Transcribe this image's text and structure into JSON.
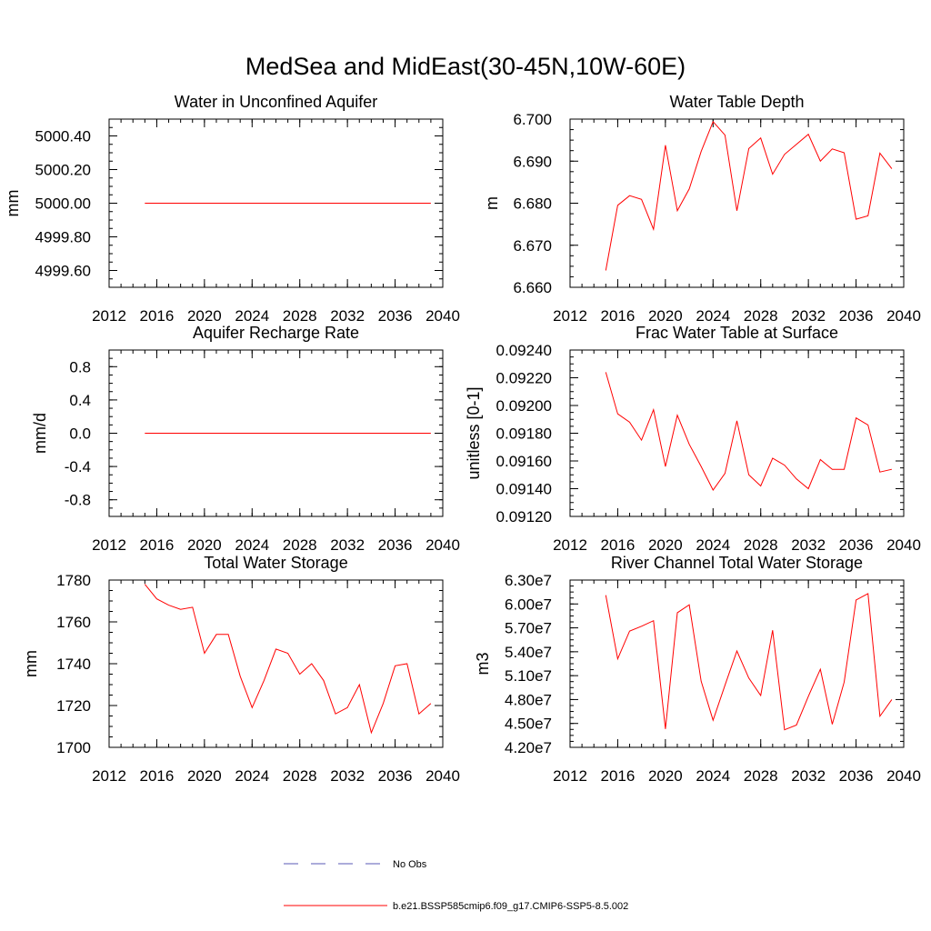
{
  "figure": {
    "title": "MedSea and MidEast(30-45N,10W-60E)"
  },
  "legend": {
    "entries": [
      {
        "label": "No Obs",
        "style": "dashed",
        "color": "#5a5ab4"
      },
      {
        "label": "b.e21.BSSP585cmip6.f09_g17.CMIP6-SSP5-8.5.002",
        "style": "solid",
        "color": "#ff0000"
      }
    ]
  },
  "colors": {
    "series": "#ff0000",
    "axes": "#000000"
  },
  "chart_data": [
    {
      "type": "line",
      "title": "Water in Unconfined Aquifer",
      "ylabel": "mm",
      "xlim": [
        2012,
        2040
      ],
      "xticks": [
        2012,
        2016,
        2020,
        2024,
        2028,
        2032,
        2036,
        2040
      ],
      "xtick_labels": [
        "2012",
        "2016",
        "2020",
        "2024",
        "2028",
        "2032",
        "2036",
        "2040"
      ],
      "ylim": [
        4999.5,
        5000.5
      ],
      "yticks": [
        4999.6,
        4999.8,
        5000.0,
        5000.2,
        5000.4
      ],
      "ytick_labels": [
        "4999.60",
        "4999.80",
        "5000.00",
        "5000.20",
        "5000.40"
      ],
      "x": [
        2015,
        2016,
        2017,
        2018,
        2019,
        2020,
        2021,
        2022,
        2023,
        2024,
        2025,
        2026,
        2027,
        2028,
        2029,
        2030,
        2031,
        2032,
        2033,
        2034,
        2035,
        2036,
        2037,
        2038,
        2039
      ],
      "series": [
        {
          "values": [
            5000,
            5000,
            5000,
            5000,
            5000,
            5000,
            5000,
            5000,
            5000,
            5000,
            5000,
            5000,
            5000,
            5000,
            5000,
            5000,
            5000,
            5000,
            5000,
            5000,
            5000,
            5000,
            5000,
            5000,
            5000
          ]
        }
      ]
    },
    {
      "type": "line",
      "title": "Water Table Depth",
      "ylabel": "m",
      "xlim": [
        2012,
        2040
      ],
      "xticks": [
        2012,
        2016,
        2020,
        2024,
        2028,
        2032,
        2036,
        2040
      ],
      "xtick_labels": [
        "2012",
        "2016",
        "2020",
        "2024",
        "2028",
        "2032",
        "2036",
        "2040"
      ],
      "ylim": [
        6.66,
        6.7
      ],
      "yticks": [
        6.66,
        6.67,
        6.68,
        6.69,
        6.7
      ],
      "ytick_labels": [
        "6.660",
        "6.670",
        "6.680",
        "6.690",
        "6.700"
      ],
      "x": [
        2015,
        2016,
        2017,
        2018,
        2019,
        2020,
        2021,
        2022,
        2023,
        2024,
        2025,
        2026,
        2027,
        2028,
        2029,
        2030,
        2031,
        2032,
        2033,
        2034,
        2035,
        2036,
        2037,
        2038,
        2039
      ],
      "series": [
        {
          "values": [
            6.664,
            6.6795,
            6.6818,
            6.6809,
            6.6738,
            6.6938,
            6.6782,
            6.6834,
            6.6923,
            6.6994,
            6.6962,
            6.6782,
            6.693,
            6.6955,
            6.6869,
            6.6916,
            6.694,
            6.6964,
            6.69,
            6.6929,
            6.692,
            6.6762,
            6.677,
            6.6919,
            6.6882
          ]
        }
      ]
    },
    {
      "type": "line",
      "title": "Aquifer Recharge Rate",
      "ylabel": "mm/d",
      "xlim": [
        2012,
        2040
      ],
      "xticks": [
        2012,
        2016,
        2020,
        2024,
        2028,
        2032,
        2036,
        2040
      ],
      "xtick_labels": [
        "2012",
        "2016",
        "2020",
        "2024",
        "2028",
        "2032",
        "2036",
        "2040"
      ],
      "ylim": [
        -1.0,
        1.0
      ],
      "yticks": [
        -0.8,
        -0.4,
        0.0,
        0.4,
        0.8
      ],
      "ytick_labels": [
        "-0.8",
        "-0.4",
        "0.0",
        "0.4",
        "0.8"
      ],
      "x": [
        2015,
        2016,
        2017,
        2018,
        2019,
        2020,
        2021,
        2022,
        2023,
        2024,
        2025,
        2026,
        2027,
        2028,
        2029,
        2030,
        2031,
        2032,
        2033,
        2034,
        2035,
        2036,
        2037,
        2038,
        2039
      ],
      "series": [
        {
          "values": [
            0,
            0,
            0,
            0,
            0,
            0,
            0,
            0,
            0,
            0,
            0,
            0,
            0,
            0,
            0,
            0,
            0,
            0,
            0,
            0,
            0,
            0,
            0,
            0,
            0
          ]
        }
      ]
    },
    {
      "type": "line",
      "title": "Frac Water Table at Surface",
      "ylabel": "unitless [0-1]",
      "xlim": [
        2012,
        2040
      ],
      "xticks": [
        2012,
        2016,
        2020,
        2024,
        2028,
        2032,
        2036,
        2040
      ],
      "xtick_labels": [
        "2012",
        "2016",
        "2020",
        "2024",
        "2028",
        "2032",
        "2036",
        "2040"
      ],
      "ylim": [
        0.0912,
        0.0924
      ],
      "yticks": [
        0.0912,
        0.0914,
        0.0916,
        0.0918,
        0.092,
        0.0922,
        0.0924
      ],
      "ytick_labels": [
        "0.09120",
        "0.09140",
        "0.09160",
        "0.09180",
        "0.09200",
        "0.09220",
        "0.09240"
      ],
      "x": [
        2015,
        2016,
        2017,
        2018,
        2019,
        2020,
        2021,
        2022,
        2023,
        2024,
        2025,
        2026,
        2027,
        2028,
        2029,
        2030,
        2031,
        2032,
        2033,
        2034,
        2035,
        2036,
        2037,
        2038,
        2039
      ],
      "series": [
        {
          "values": [
            0.09224,
            0.09194,
            0.09188,
            0.09175,
            0.09197,
            0.09156,
            0.09193,
            0.09172,
            0.09156,
            0.09139,
            0.09151,
            0.09189,
            0.0915,
            0.09142,
            0.09162,
            0.09157,
            0.09147,
            0.0914,
            0.09161,
            0.09154,
            0.09154,
            0.09191,
            0.09186,
            0.09152,
            0.09154
          ]
        }
      ]
    },
    {
      "type": "line",
      "title": "Total Water Storage",
      "ylabel": "mm",
      "xlim": [
        2012,
        2040
      ],
      "xticks": [
        2012,
        2016,
        2020,
        2024,
        2028,
        2032,
        2036,
        2040
      ],
      "xtick_labels": [
        "2012",
        "2016",
        "2020",
        "2024",
        "2028",
        "2032",
        "2036",
        "2040"
      ],
      "ylim": [
        1700,
        1780
      ],
      "yticks": [
        1700,
        1720,
        1740,
        1760,
        1780
      ],
      "ytick_labels": [
        "1700",
        "1720",
        "1740",
        "1760",
        "1780"
      ],
      "x": [
        2015,
        2016,
        2017,
        2018,
        2019,
        2020,
        2021,
        2022,
        2023,
        2024,
        2025,
        2026,
        2027,
        2028,
        2029,
        2030,
        2031,
        2032,
        2033,
        2034,
        2035,
        2036,
        2037,
        2038,
        2039
      ],
      "series": [
        {
          "values": [
            1778,
            1771,
            1768,
            1766,
            1767,
            1745,
            1754,
            1754,
            1734,
            1719,
            1732,
            1747,
            1745,
            1735,
            1740,
            1732,
            1716,
            1719,
            1730,
            1707,
            1721,
            1739,
            1740,
            1716,
            1721
          ]
        }
      ]
    },
    {
      "type": "line",
      "title": "River Channel Total Water Storage",
      "ylabel": "m3",
      "xlim": [
        2012,
        2040
      ],
      "xticks": [
        2012,
        2016,
        2020,
        2024,
        2028,
        2032,
        2036,
        2040
      ],
      "xtick_labels": [
        "2012",
        "2016",
        "2020",
        "2024",
        "2028",
        "2032",
        "2036",
        "2040"
      ],
      "ylim": [
        42000000,
        63000000
      ],
      "yticks": [
        42000000,
        45000000,
        48000000,
        51000000,
        54000000,
        57000000,
        60000000,
        63000000
      ],
      "ytick_labels": [
        "4.20e7",
        "4.50e7",
        "4.80e7",
        "5.10e7",
        "5.40e7",
        "5.70e7",
        "6.00e7",
        "6.30e7"
      ],
      "x": [
        2015,
        2016,
        2017,
        2018,
        2019,
        2020,
        2021,
        2022,
        2023,
        2024,
        2025,
        2026,
        2027,
        2028,
        2029,
        2030,
        2031,
        2032,
        2033,
        2034,
        2035,
        2036,
        2037,
        2038,
        2039
      ],
      "series": [
        {
          "values": [
            61100000,
            53100000,
            56600000,
            57200000,
            57900000,
            44300000,
            58900000,
            59900000,
            50300000,
            45400000,
            49800000,
            54100000,
            50700000,
            48500000,
            56700000,
            44200000,
            44800000,
            48400000,
            51800000,
            44900000,
            50200000,
            60500000,
            61300000,
            45900000,
            48000000
          ]
        }
      ]
    }
  ]
}
